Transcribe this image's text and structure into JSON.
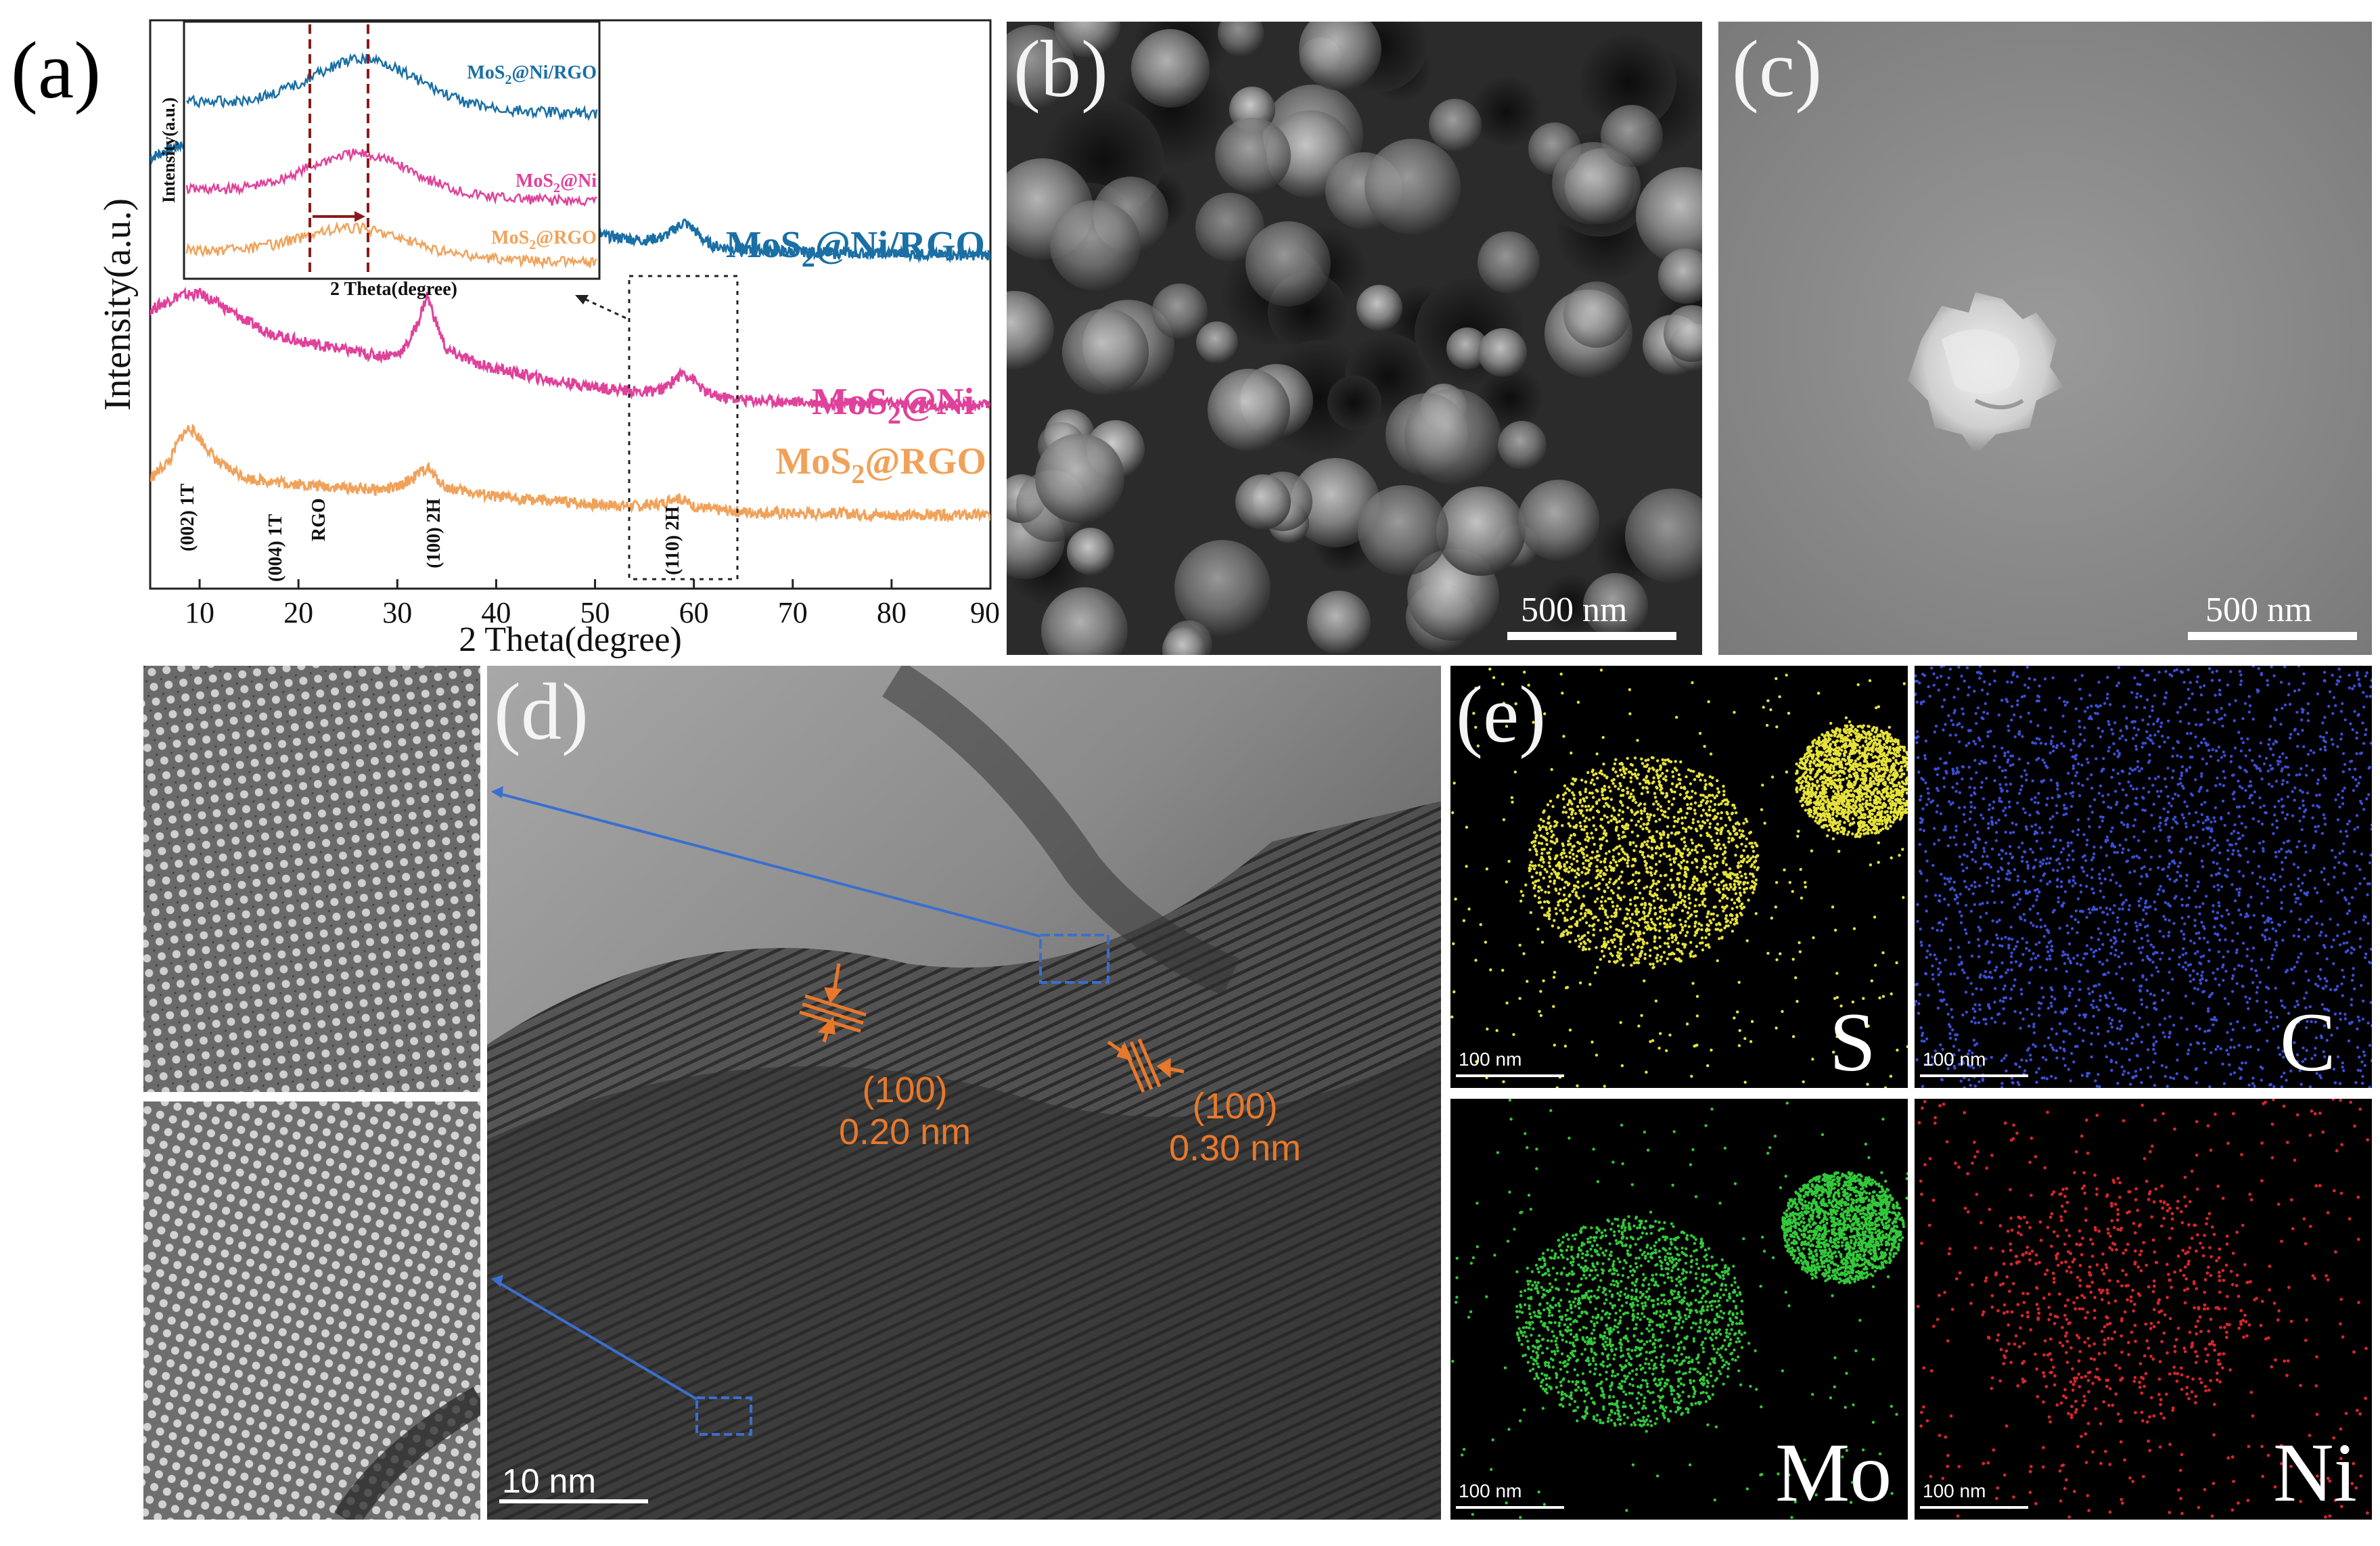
{
  "panels": {
    "a": "(a)",
    "b": "(b)",
    "c": "(c)",
    "d": "(d)",
    "e": "(e)"
  },
  "chart_data": {
    "type": "line",
    "xlabel": "2 Theta(degree)",
    "ylabel": "Intensity(a.u.)",
    "xlim": [
      5,
      90
    ],
    "xticks": [
      10,
      20,
      30,
      40,
      50,
      60,
      70,
      80,
      90
    ],
    "series": [
      {
        "name": "MoS2@Ni/RGO",
        "color": "#1a6fa5",
        "x": [
          5,
          8,
          10,
          12,
          15,
          18,
          20,
          22,
          25,
          28,
          30,
          31,
          32,
          33,
          34,
          35,
          38,
          40,
          45,
          50,
          55,
          57,
          58,
          59,
          60,
          61,
          62,
          65,
          70,
          75,
          80,
          85,
          90
        ],
        "y": [
          3.05,
          3.12,
          3.14,
          3.1,
          3.02,
          2.96,
          2.93,
          2.92,
          2.88,
          2.84,
          2.85,
          2.9,
          3.0,
          3.12,
          3.0,
          2.86,
          2.79,
          2.75,
          2.68,
          2.63,
          2.6,
          2.62,
          2.66,
          2.7,
          2.66,
          2.6,
          2.57,
          2.55,
          2.54,
          2.53,
          2.53,
          2.52,
          2.52
        ]
      },
      {
        "name": "MoS2@Ni",
        "color": "#e0419a",
        "x": [
          5,
          8,
          10,
          12,
          15,
          18,
          20,
          22,
          25,
          28,
          30,
          31,
          32,
          33,
          34,
          35,
          38,
          40,
          45,
          50,
          55,
          57,
          58,
          59,
          60,
          61,
          62,
          65,
          70,
          75,
          80,
          85,
          90
        ],
        "y": [
          2.22,
          2.3,
          2.31,
          2.25,
          2.15,
          2.08,
          2.05,
          2.03,
          2.0,
          1.97,
          1.98,
          2.03,
          2.14,
          2.3,
          2.14,
          2.0,
          1.93,
          1.9,
          1.84,
          1.8,
          1.77,
          1.79,
          1.84,
          1.88,
          1.84,
          1.78,
          1.75,
          1.73,
          1.72,
          1.71,
          1.71,
          1.7,
          1.7
        ]
      },
      {
        "name": "MoS2@RGO",
        "color": "#f0a25a",
        "x": [
          5,
          7,
          8,
          9,
          10,
          12,
          15,
          18,
          20,
          22,
          25,
          28,
          30,
          32,
          33,
          34,
          35,
          38,
          40,
          45,
          50,
          55,
          57,
          58,
          59,
          60,
          62,
          65,
          70,
          75,
          80,
          85,
          90
        ],
        "y": [
          1.3,
          1.4,
          1.52,
          1.58,
          1.52,
          1.38,
          1.3,
          1.28,
          1.27,
          1.26,
          1.25,
          1.24,
          1.25,
          1.32,
          1.36,
          1.3,
          1.25,
          1.22,
          1.2,
          1.18,
          1.16,
          1.15,
          1.17,
          1.2,
          1.18,
          1.15,
          1.13,
          1.12,
          1.11,
          1.11,
          1.1,
          1.1,
          1.1
        ]
      }
    ],
    "series_labels": {
      "s1_main": "MoS",
      "s1_sub": "2",
      "s1_tail": "@Ni/RGO",
      "s2_main": "MoS",
      "s2_sub": "2",
      "s2_tail": "@Ni",
      "s3_main": "MoS",
      "s3_sub": "2",
      "s3_tail": "@RGO"
    },
    "peak_labels": [
      "(002) 1T",
      "(004) 1T",
      "RGO",
      "(100) 2H",
      "(110) 2H"
    ],
    "inset": {
      "xlabel": "2 Theta(degree)",
      "ylabel": "Intensity(a.u.)",
      "labels": [
        "MoS2@Ni/RGO",
        "MoS2@Ni",
        "MoS2@RGO"
      ],
      "label_parts": {
        "l1_main": "MoS",
        "l1_sub": "2",
        "l1_tail": "@Ni/RGO",
        "l2_main": "MoS",
        "l2_sub": "2",
        "l2_tail": "@Ni",
        "l3_main": "MoS",
        "l3_sub": "2",
        "l3_tail": "@RGO"
      }
    }
  },
  "sem": {
    "b_scale": "500 nm",
    "c_scale": "500 nm"
  },
  "tem": {
    "scale": "10 nm",
    "fringe1_plane": "(100)",
    "fringe1_spacing": "0.20 nm",
    "fringe2_plane": "(100)",
    "fringe2_spacing": "0.30 nm",
    "annotation_color": "#e8782a",
    "link_color": "#3a6fd0"
  },
  "eds": {
    "maps": [
      {
        "element": "S",
        "scale": "100 nm",
        "color": "#e6e23a"
      },
      {
        "element": "C",
        "scale": "100 nm",
        "color": "#3b4fd8"
      },
      {
        "element": "Mo",
        "scale": "100 nm",
        "color": "#33c83a"
      },
      {
        "element": "Ni",
        "scale": "100 nm",
        "color": "#d8262a"
      }
    ]
  }
}
